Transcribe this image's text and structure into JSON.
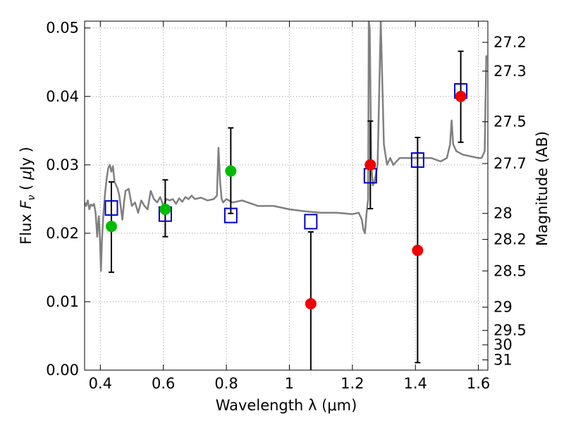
{
  "chart_data": {
    "type": "scatter",
    "xlabel": "Wavelength  λ (μm)",
    "ylabel": "Flux  F_ν  ( μJy )",
    "ylabel_parts": {
      "pre": "Flux  ",
      "var": "F",
      "sub": "ν",
      "paren_open": "  ( ",
      "mu": "μ",
      "unit": "Jy )"
    },
    "y2label": "Magnitude (AB)",
    "xlim": [
      0.35,
      1.63
    ],
    "ylim": [
      0.0,
      0.051
    ],
    "grid": true,
    "x_ticks": [
      0.4,
      0.6,
      0.8,
      1.0,
      1.2,
      1.4,
      1.6
    ],
    "x_tick_labels": [
      "0.4",
      "0.6",
      "0.8",
      "1",
      "1.2",
      "1.4",
      "1.6"
    ],
    "y_ticks": [
      0.0,
      0.01,
      0.02,
      0.03,
      0.04,
      0.05
    ],
    "y_tick_labels": [
      "0.00",
      "0.01",
      "0.02",
      "0.03",
      "0.04",
      "0.05"
    ],
    "mag_ticks": [
      {
        "label": "27.2",
        "flux": 0.0479
      },
      {
        "label": "27.3",
        "flux": 0.0437
      },
      {
        "label": "27.5",
        "flux": 0.0363
      },
      {
        "label": "27.7",
        "flux": 0.0302
      },
      {
        "label": "28",
        "flux": 0.0229
      },
      {
        "label": "28.2",
        "flux": 0.0191
      },
      {
        "label": "28.5",
        "flux": 0.0145
      },
      {
        "label": "29",
        "flux": 0.0092
      },
      {
        "label": "29.5",
        "flux": 0.0058
      },
      {
        "label": "30",
        "flux": 0.0037
      },
      {
        "label": "31",
        "flux": 0.0015
      }
    ],
    "colors": {
      "model_line": "#808080",
      "model_points": "#0000cc",
      "green_points": "#00bb00",
      "red_points": "#ee0000",
      "error_bars": "#000000",
      "grid": "#999999"
    },
    "series": [
      {
        "name": "observed_optical",
        "color": "#00bb00",
        "marker": "circle",
        "points": [
          {
            "x": 0.435,
            "y": 0.021,
            "err_low": 0.0067,
            "err_high": 0.0065
          },
          {
            "x": 0.606,
            "y": 0.0235,
            "err_low": 0.004,
            "err_high": 0.0043
          },
          {
            "x": 0.814,
            "y": 0.0291,
            "err_low": 0.0062,
            "err_high": 0.0063
          }
        ]
      },
      {
        "name": "observed_nir",
        "color": "#ee0000",
        "marker": "circle",
        "points": [
          {
            "x": 1.068,
            "y": 0.0097,
            "err_low": 0.0097,
            "err_high": 0.0105
          },
          {
            "x": 1.257,
            "y": 0.03,
            "err_low": 0.0064,
            "err_high": 0.0064
          },
          {
            "x": 1.407,
            "y": 0.0175,
            "err_low": 0.0164,
            "err_high": 0.0165
          },
          {
            "x": 1.544,
            "y": 0.04,
            "err_low": 0.0067,
            "err_high": 0.0066
          }
        ]
      },
      {
        "name": "model_photometry",
        "color": "#0000cc",
        "marker": "square",
        "points": [
          {
            "x": 0.435,
            "y": 0.0237
          },
          {
            "x": 0.606,
            "y": 0.0228
          },
          {
            "x": 0.814,
            "y": 0.0226
          },
          {
            "x": 1.068,
            "y": 0.0217
          },
          {
            "x": 1.257,
            "y": 0.0284
          },
          {
            "x": 1.407,
            "y": 0.0307
          },
          {
            "x": 1.544,
            "y": 0.0408
          }
        ]
      },
      {
        "name": "model_spectrum",
        "color": "#808080",
        "type": "line",
        "x": [
          0.35,
          0.355,
          0.36,
          0.365,
          0.37,
          0.375,
          0.38,
          0.385,
          0.39,
          0.395,
          0.398,
          0.402,
          0.405,
          0.41,
          0.415,
          0.42,
          0.425,
          0.43,
          0.435,
          0.44,
          0.445,
          0.45,
          0.455,
          0.46,
          0.465,
          0.47,
          0.475,
          0.48,
          0.49,
          0.5,
          0.51,
          0.52,
          0.53,
          0.54,
          0.55,
          0.56,
          0.57,
          0.58,
          0.59,
          0.6,
          0.61,
          0.62,
          0.63,
          0.64,
          0.65,
          0.66,
          0.67,
          0.68,
          0.69,
          0.7,
          0.72,
          0.74,
          0.76,
          0.77,
          0.775,
          0.78,
          0.785,
          0.79,
          0.8,
          0.82,
          0.85,
          0.9,
          0.95,
          1.0,
          1.05,
          1.1,
          1.15,
          1.2,
          1.22,
          1.23,
          1.235,
          1.24,
          1.245,
          1.25,
          1.252,
          1.255,
          1.26,
          1.265,
          1.27,
          1.28,
          1.29,
          1.3,
          1.31,
          1.32,
          1.33,
          1.35,
          1.4,
          1.45,
          1.48,
          1.5,
          1.51,
          1.515,
          1.52,
          1.53,
          1.55,
          1.6,
          1.61,
          1.62,
          1.625
        ],
        "y": [
          0.0245,
          0.024,
          0.0248,
          0.0235,
          0.0242,
          0.024,
          0.0243,
          0.023,
          0.0195,
          0.0225,
          0.02,
          0.0145,
          0.019,
          0.023,
          0.0258,
          0.028,
          0.0295,
          0.03,
          0.029,
          0.0298,
          0.0275,
          0.027,
          0.0265,
          0.0255,
          0.0238,
          0.022,
          0.0245,
          0.0262,
          0.0265,
          0.024,
          0.0245,
          0.023,
          0.0248,
          0.024,
          0.0235,
          0.0262,
          0.025,
          0.0245,
          0.0253,
          0.024,
          0.025,
          0.0248,
          0.025,
          0.0243,
          0.0251,
          0.0246,
          0.0253,
          0.025,
          0.0255,
          0.025,
          0.0252,
          0.0248,
          0.025,
          0.0255,
          0.0325,
          0.0275,
          0.025,
          0.0245,
          0.025,
          0.0245,
          0.0248,
          0.024,
          0.024,
          0.0235,
          0.0232,
          0.023,
          0.023,
          0.0228,
          0.023,
          0.022,
          0.0205,
          0.02,
          0.023,
          0.025,
          0.051,
          0.05,
          0.03,
          0.027,
          0.0275,
          0.03,
          0.051,
          0.033,
          0.03,
          0.031,
          0.03,
          0.031,
          0.031,
          0.031,
          0.0305,
          0.031,
          0.033,
          0.0365,
          0.033,
          0.032,
          0.0315,
          0.031,
          0.031,
          0.032,
          0.046
        ]
      }
    ]
  }
}
